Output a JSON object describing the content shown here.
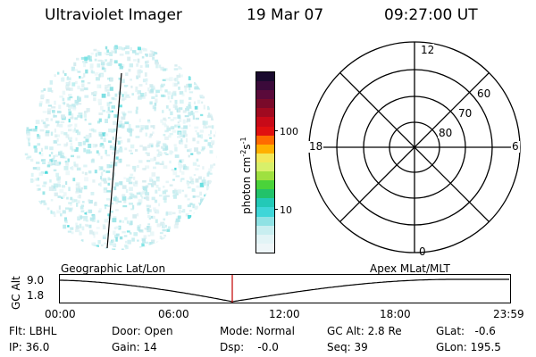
{
  "header": {
    "instrument": "Ultraviolet Imager",
    "date": "19 Mar 07",
    "time": "09:27:00 UT"
  },
  "colorbar": {
    "label_main": "photon cm",
    "label_sup1": "-2",
    "label_mid": "s",
    "label_sup2": "-1",
    "ticks": [
      "100",
      "10"
    ],
    "colors": [
      "#1a0a2e",
      "#3b0a3a",
      "#5a0a3a",
      "#7a0a2a",
      "#a00a20",
      "#c80a18",
      "#e01010",
      "#ff6a00",
      "#ffb000",
      "#f2e85a",
      "#d8f06a",
      "#9fe040",
      "#4ad33a",
      "#22c26a",
      "#23c9b7",
      "#3fd6d8",
      "#8fe2e4",
      "#c8eef0",
      "#e2f4f6",
      "#eef6f8"
    ]
  },
  "polar": {
    "lat_labels": [
      "60",
      "70",
      "80"
    ],
    "mlt_labels": {
      "top": "12",
      "left": "18",
      "right": "6",
      "bottom": "0"
    }
  },
  "timeline": {
    "left_label": "Geographic Lat/Lon",
    "right_label": "Apex  MLat/MLT",
    "axis_label": "GC Alt",
    "y_ticks": [
      "9.0",
      "1.8"
    ],
    "x_ticks": [
      "00:00",
      "06:00",
      "12:00",
      "18:00",
      "23:59"
    ],
    "marker_color": "#c00000"
  },
  "status": {
    "flt": "Flt: LBHL",
    "ip": "IP: 36.0",
    "door": "Door: Open",
    "gain": "Gain: 14",
    "mode": "Mode: Normal",
    "dsp": "Dsp:    -0.0",
    "gc_alt": "GC Alt: 2.8 Re",
    "seq": "Seq: 39",
    "glat": "GLat:   -0.6",
    "glon": "GLon: 195.5"
  }
}
